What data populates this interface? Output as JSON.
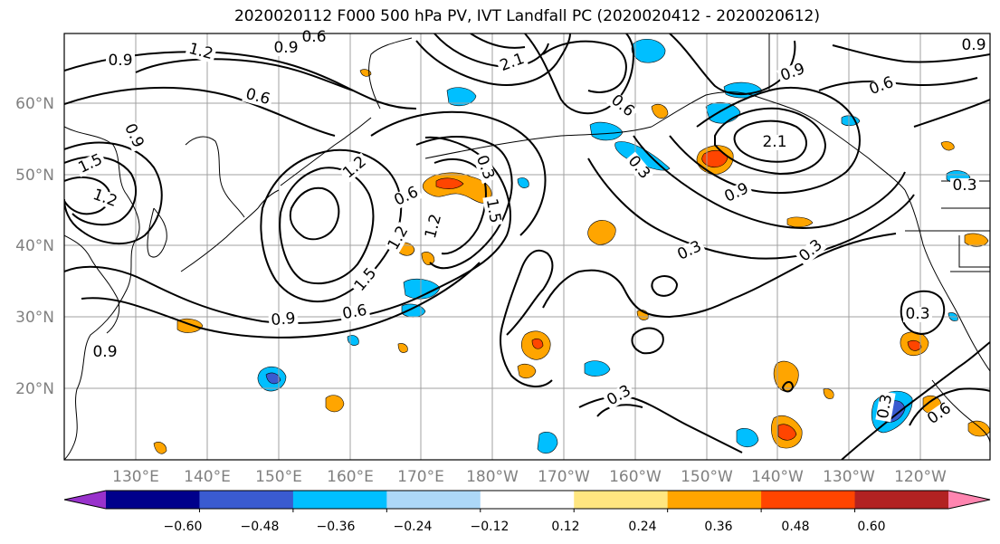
{
  "title": "2020020112 F000 500 hPa PV, IVT Landfall PC (2020020412 - 2020020612)",
  "lat_labels": [
    "60°N",
    "50°N",
    "40°N",
    "30°N",
    "20°N"
  ],
  "lon_labels": [
    "130°E",
    "140°E",
    "150°E",
    "160°E",
    "170°E",
    "180°W",
    "170°W",
    "160°W",
    "150°W",
    "140°W",
    "130°W",
    "120°W"
  ],
  "colorbar": {
    "ticks": [
      "−0.60",
      "−0.48",
      "−0.36",
      "−0.24",
      "−0.12",
      "0.12",
      "0.24",
      "0.36",
      "0.48",
      "0.60"
    ],
    "colors": [
      "#9932cc",
      "#00008b",
      "#3a5bd0",
      "#00bfff",
      "#add8f8",
      "#ffffff",
      "#ffe680",
      "#ffa500",
      "#ff4500",
      "#b22222",
      "#ff85b0"
    ]
  },
  "contour_labels": [
    {
      "text": "0.9"
    },
    {
      "text": "1.2"
    },
    {
      "text": "0.6"
    },
    {
      "text": "0.9"
    },
    {
      "text": "0.6"
    },
    {
      "text": "0.9"
    },
    {
      "text": "1.5"
    },
    {
      "text": "1.2"
    },
    {
      "text": "1.2"
    },
    {
      "text": "0.6"
    },
    {
      "text": "1.2"
    },
    {
      "text": "1.2"
    },
    {
      "text": "1.5"
    },
    {
      "text": "1.5"
    },
    {
      "text": "0.9"
    },
    {
      "text": "0.6"
    },
    {
      "text": "0.3"
    },
    {
      "text": "0.6"
    },
    {
      "text": "2.1"
    },
    {
      "text": "0.9"
    },
    {
      "text": "2.1"
    },
    {
      "text": "0.9"
    },
    {
      "text": "0.3"
    },
    {
      "text": "0.3"
    },
    {
      "text": "0.6"
    },
    {
      "text": "0.9"
    },
    {
      "text": "0.3"
    },
    {
      "text": "0.3"
    },
    {
      "text": "0.3"
    },
    {
      "text": "0.6"
    },
    {
      "text": "0.3"
    },
    {
      "text": "0.3"
    },
    {
      "text": "0.9"
    }
  ]
}
